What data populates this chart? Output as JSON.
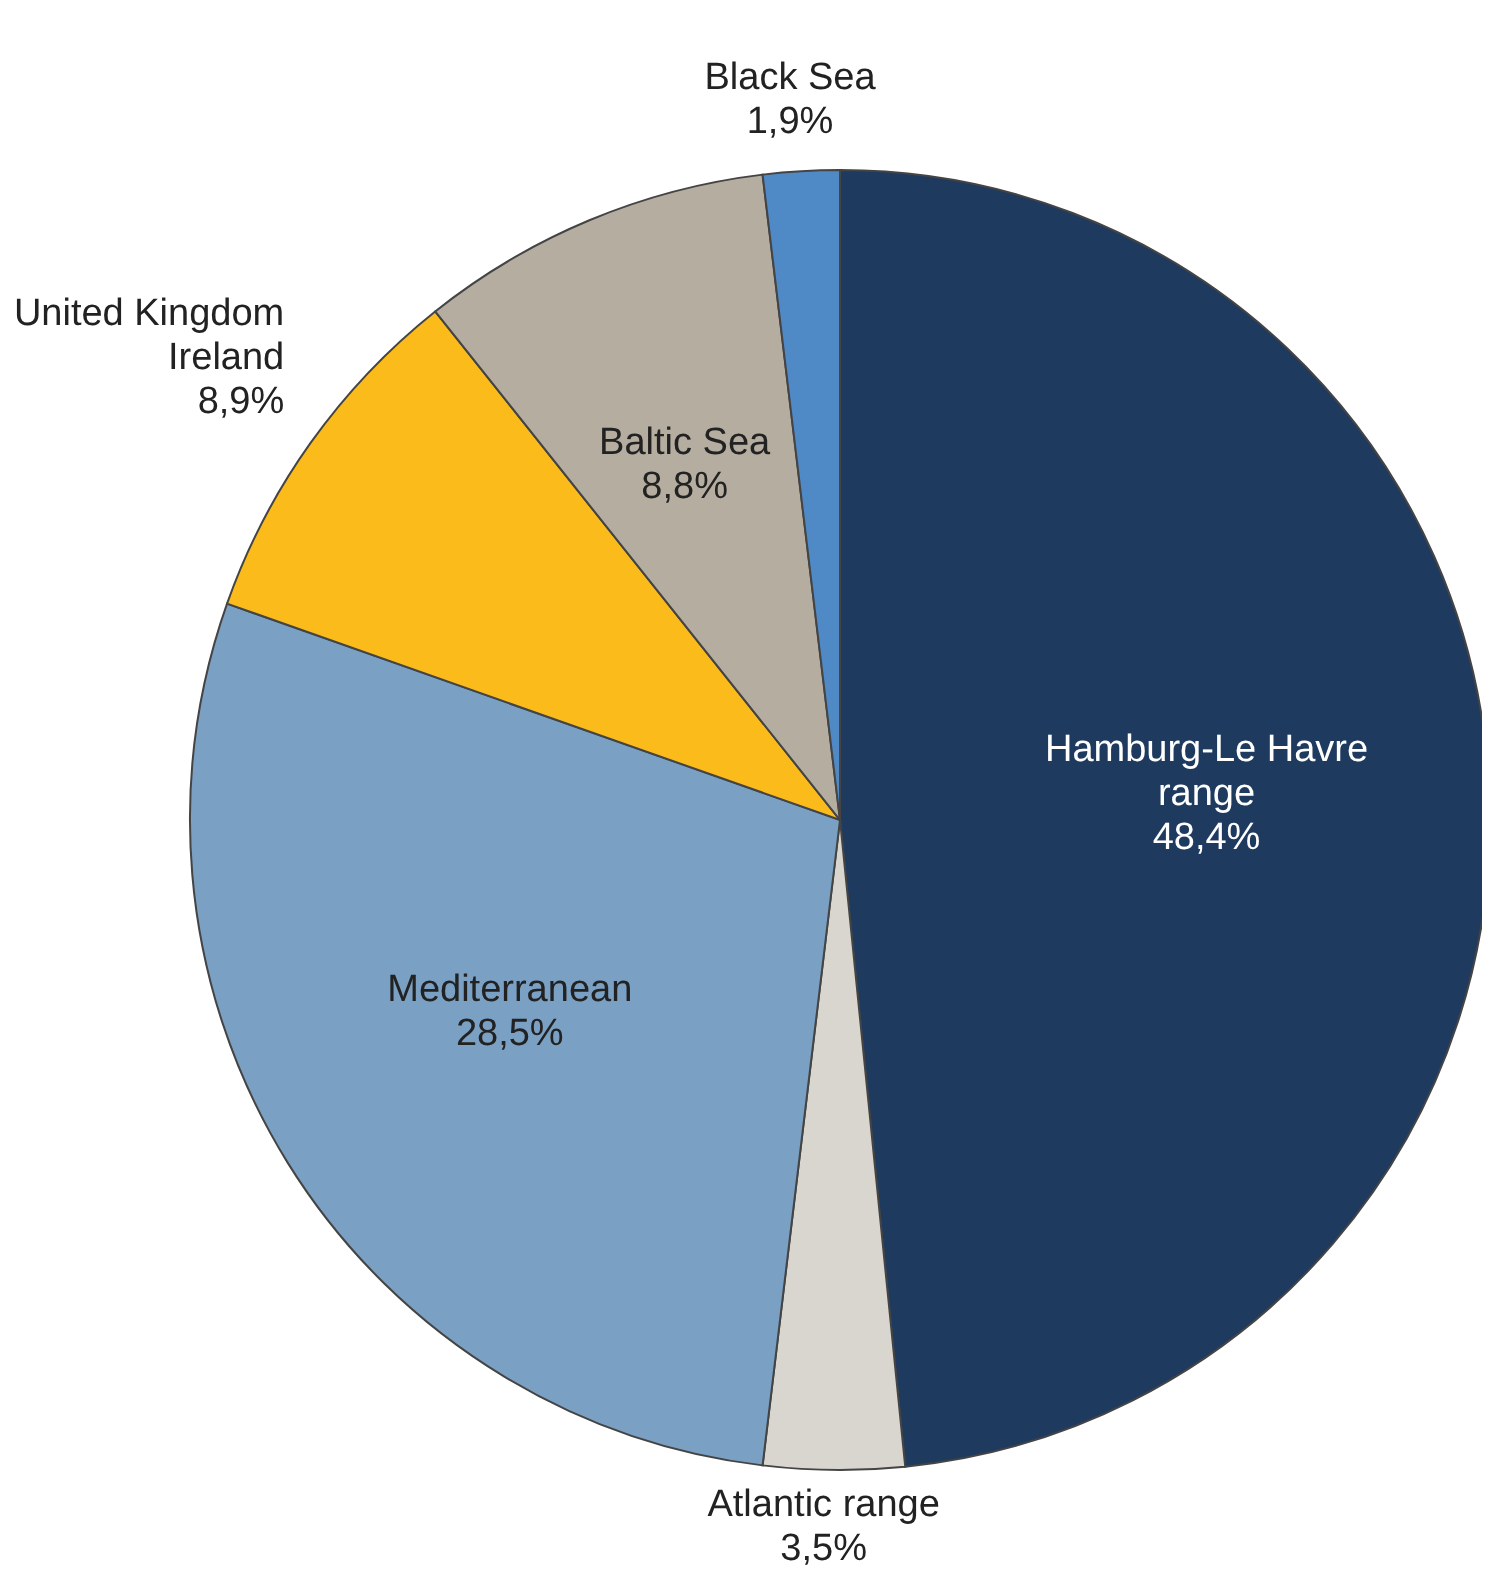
{
  "chart_data": {
    "type": "pie",
    "categories": [
      "Hamburg-Le Havre range",
      "Atlantic range",
      "Mediterranean",
      "United Kingdom Ireland",
      "Baltic Sea",
      "Black Sea"
    ],
    "values": [
      48.4,
      3.5,
      28.5,
      8.9,
      8.8,
      1.9
    ],
    "colors": [
      "#1f3a5f",
      "#d9d6d0",
      "#7aa0c4",
      "#fbbb1b",
      "#b5ada0",
      "#4f8ac6"
    ],
    "value_labels": [
      "48,4%",
      "3,5%",
      "28,5%",
      "8,9%",
      "8,8%",
      "1,9%"
    ],
    "legend": false
  }
}
